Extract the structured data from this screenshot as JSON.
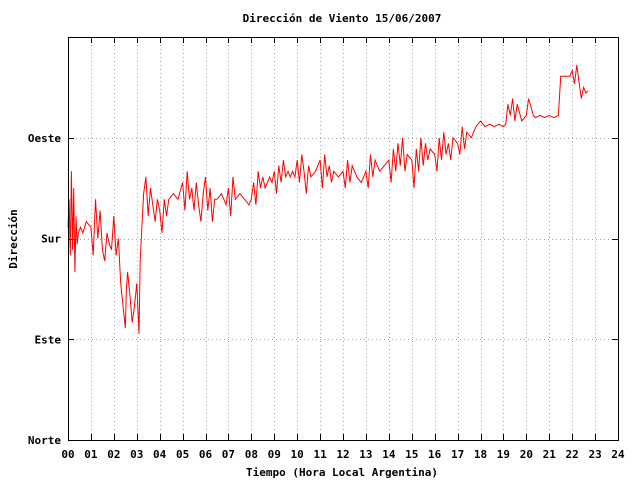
{
  "chart_data": {
    "type": "line",
    "title": "Dirección de Viento 15/06/2007",
    "xlabel": "Tiempo (Hora Local Argentina)",
    "ylabel": "Dirección",
    "xlim": [
      0,
      24
    ],
    "ylim": [
      0,
      360
    ],
    "grid": true,
    "x_ticks": [
      {
        "value": 0,
        "label": "00"
      },
      {
        "value": 1,
        "label": "01"
      },
      {
        "value": 2,
        "label": "02"
      },
      {
        "value": 3,
        "label": "03"
      },
      {
        "value": 4,
        "label": "04"
      },
      {
        "value": 5,
        "label": "05"
      },
      {
        "value": 6,
        "label": "06"
      },
      {
        "value": 7,
        "label": "07"
      },
      {
        "value": 8,
        "label": "08"
      },
      {
        "value": 9,
        "label": "09"
      },
      {
        "value": 10,
        "label": "10"
      },
      {
        "value": 11,
        "label": "11"
      },
      {
        "value": 12,
        "label": "12"
      },
      {
        "value": 13,
        "label": "13"
      },
      {
        "value": 14,
        "label": "14"
      },
      {
        "value": 15,
        "label": "15"
      },
      {
        "value": 16,
        "label": "16"
      },
      {
        "value": 17,
        "label": "17"
      },
      {
        "value": 18,
        "label": "18"
      },
      {
        "value": 19,
        "label": "19"
      },
      {
        "value": 20,
        "label": "20"
      },
      {
        "value": 21,
        "label": "21"
      },
      {
        "value": 22,
        "label": "22"
      },
      {
        "value": 23,
        "label": "23"
      },
      {
        "value": 24,
        "label": "24"
      }
    ],
    "y_ticks": [
      {
        "value": 0,
        "label": "Norte"
      },
      {
        "value": 90,
        "label": "Este"
      },
      {
        "value": 180,
        "label": "Sur"
      },
      {
        "value": 270,
        "label": "Oeste"
      }
    ],
    "series": [
      {
        "color": "#ff0000",
        "points": [
          [
            0.0,
            190
          ],
          [
            0.05,
            215
          ],
          [
            0.1,
            165
          ],
          [
            0.15,
            240
          ],
          [
            0.2,
            170
          ],
          [
            0.25,
            225
          ],
          [
            0.3,
            150
          ],
          [
            0.35,
            200
          ],
          [
            0.4,
            175
          ],
          [
            0.45,
            185
          ],
          [
            0.55,
            190
          ],
          [
            0.65,
            185
          ],
          [
            0.8,
            195
          ],
          [
            1.0,
            190
          ],
          [
            1.1,
            165
          ],
          [
            1.2,
            215
          ],
          [
            1.3,
            180
          ],
          [
            1.4,
            205
          ],
          [
            1.5,
            170
          ],
          [
            1.6,
            160
          ],
          [
            1.7,
            185
          ],
          [
            1.8,
            175
          ],
          [
            1.9,
            170
          ],
          [
            2.0,
            200
          ],
          [
            2.1,
            165
          ],
          [
            2.2,
            180
          ],
          [
            2.3,
            140
          ],
          [
            2.4,
            120
          ],
          [
            2.5,
            100
          ],
          [
            2.55,
            135
          ],
          [
            2.6,
            150
          ],
          [
            2.7,
            130
          ],
          [
            2.8,
            105
          ],
          [
            2.9,
            120
          ],
          [
            3.0,
            140
          ],
          [
            3.1,
            95
          ],
          [
            3.15,
            160
          ],
          [
            3.2,
            180
          ],
          [
            3.3,
            220
          ],
          [
            3.4,
            235
          ],
          [
            3.5,
            200
          ],
          [
            3.6,
            225
          ],
          [
            3.7,
            210
          ],
          [
            3.8,
            195
          ],
          [
            3.9,
            215
          ],
          [
            4.0,
            205
          ],
          [
            4.1,
            185
          ],
          [
            4.2,
            215
          ],
          [
            4.3,
            200
          ],
          [
            4.4,
            215
          ],
          [
            4.6,
            220
          ],
          [
            4.8,
            215
          ],
          [
            5.0,
            230
          ],
          [
            5.1,
            205
          ],
          [
            5.2,
            240
          ],
          [
            5.3,
            215
          ],
          [
            5.4,
            225
          ],
          [
            5.5,
            205
          ],
          [
            5.6,
            230
          ],
          [
            5.7,
            210
          ],
          [
            5.8,
            195
          ],
          [
            5.9,
            220
          ],
          [
            6.0,
            235
          ],
          [
            6.1,
            205
          ],
          [
            6.2,
            225
          ],
          [
            6.3,
            195
          ],
          [
            6.4,
            215
          ],
          [
            6.5,
            215
          ],
          [
            6.7,
            220
          ],
          [
            6.9,
            210
          ],
          [
            7.0,
            225
          ],
          [
            7.1,
            200
          ],
          [
            7.2,
            235
          ],
          [
            7.3,
            215
          ],
          [
            7.5,
            220
          ],
          [
            7.7,
            215
          ],
          [
            7.9,
            210
          ],
          [
            8.0,
            215
          ],
          [
            8.1,
            230
          ],
          [
            8.2,
            210
          ],
          [
            8.3,
            240
          ],
          [
            8.4,
            225
          ],
          [
            8.5,
            235
          ],
          [
            8.6,
            225
          ],
          [
            8.7,
            230
          ],
          [
            8.8,
            235
          ],
          [
            8.9,
            230
          ],
          [
            9.0,
            240
          ],
          [
            9.1,
            220
          ],
          [
            9.2,
            245
          ],
          [
            9.3,
            230
          ],
          [
            9.4,
            250
          ],
          [
            9.5,
            235
          ],
          [
            9.6,
            240
          ],
          [
            9.7,
            235
          ],
          [
            9.8,
            240
          ],
          [
            9.9,
            235
          ],
          [
            10.0,
            250
          ],
          [
            10.1,
            230
          ],
          [
            10.2,
            255
          ],
          [
            10.3,
            240
          ],
          [
            10.4,
            220
          ],
          [
            10.5,
            245
          ],
          [
            10.6,
            235
          ],
          [
            10.8,
            240
          ],
          [
            11.0,
            250
          ],
          [
            11.1,
            225
          ],
          [
            11.2,
            255
          ],
          [
            11.3,
            235
          ],
          [
            11.4,
            245
          ],
          [
            11.5,
            230
          ],
          [
            11.6,
            240
          ],
          [
            11.8,
            235
          ],
          [
            12.0,
            240
          ],
          [
            12.1,
            225
          ],
          [
            12.2,
            250
          ],
          [
            12.3,
            230
          ],
          [
            12.4,
            245
          ],
          [
            12.6,
            235
          ],
          [
            12.8,
            230
          ],
          [
            13.0,
            240
          ],
          [
            13.1,
            225
          ],
          [
            13.2,
            255
          ],
          [
            13.3,
            235
          ],
          [
            13.4,
            250
          ],
          [
            13.6,
            240
          ],
          [
            13.8,
            245
          ],
          [
            14.0,
            250
          ],
          [
            14.1,
            230
          ],
          [
            14.2,
            260
          ],
          [
            14.3,
            240
          ],
          [
            14.4,
            265
          ],
          [
            14.5,
            245
          ],
          [
            14.6,
            270
          ],
          [
            14.7,
            240
          ],
          [
            14.8,
            255
          ],
          [
            15.0,
            250
          ],
          [
            15.1,
            225
          ],
          [
            15.2,
            260
          ],
          [
            15.3,
            240
          ],
          [
            15.4,
            270
          ],
          [
            15.5,
            245
          ],
          [
            15.6,
            265
          ],
          [
            15.7,
            250
          ],
          [
            15.8,
            260
          ],
          [
            16.0,
            255
          ],
          [
            16.1,
            240
          ],
          [
            16.2,
            270
          ],
          [
            16.3,
            250
          ],
          [
            16.4,
            275
          ],
          [
            16.5,
            255
          ],
          [
            16.6,
            265
          ],
          [
            16.7,
            250
          ],
          [
            16.8,
            270
          ],
          [
            17.0,
            265
          ],
          [
            17.1,
            255
          ],
          [
            17.2,
            280
          ],
          [
            17.3,
            260
          ],
          [
            17.4,
            275
          ],
          [
            17.6,
            270
          ],
          [
            17.8,
            280
          ],
          [
            18.0,
            285
          ],
          [
            18.2,
            280
          ],
          [
            18.4,
            282
          ],
          [
            18.6,
            280
          ],
          [
            18.8,
            282
          ],
          [
            19.0,
            280
          ],
          [
            19.1,
            282
          ],
          [
            19.2,
            300
          ],
          [
            19.3,
            290
          ],
          [
            19.4,
            305
          ],
          [
            19.5,
            285
          ],
          [
            19.6,
            300
          ],
          [
            19.8,
            285
          ],
          [
            20.0,
            290
          ],
          [
            20.1,
            305
          ],
          [
            20.2,
            298
          ],
          [
            20.3,
            290
          ],
          [
            20.4,
            288
          ],
          [
            20.6,
            290
          ],
          [
            20.8,
            288
          ],
          [
            21.0,
            290
          ],
          [
            21.2,
            288
          ],
          [
            21.4,
            290
          ],
          [
            21.5,
            325
          ],
          [
            21.7,
            325
          ],
          [
            21.9,
            325
          ],
          [
            22.0,
            330
          ],
          [
            22.1,
            318
          ],
          [
            22.2,
            335
          ],
          [
            22.3,
            320
          ],
          [
            22.4,
            305
          ],
          [
            22.5,
            315
          ],
          [
            22.6,
            310
          ],
          [
            22.7,
            312
          ]
        ]
      }
    ]
  }
}
